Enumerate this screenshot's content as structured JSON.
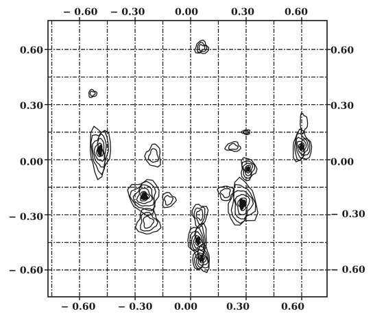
{
  "chart_data": {
    "type": "contour",
    "title": "",
    "xlabel": "",
    "ylabel": "",
    "xlim": [
      -0.9,
      0.9
    ],
    "ylim": [
      -0.78,
      0.78
    ],
    "grid": true,
    "x_ticks": [
      -0.6,
      -0.3,
      0.0,
      0.3,
      0.6
    ],
    "y_ticks": [
      0.6,
      0.3,
      0.0,
      -0.3,
      -0.6
    ],
    "tick_labels": {
      "top": [
        "− 0.60",
        "− 0.30",
        "0.00",
        "0.30",
        "0.60"
      ],
      "bottom": [
        "− 0.60",
        "− 0.30",
        "0.00",
        "0.30",
        "0.60"
      ],
      "left": [
        "0.60",
        "0.30",
        "0.00",
        "− 0.30",
        "− 0.60"
      ],
      "right": [
        "0.60",
        "0.30",
        "0.00",
        "− 0.30",
        "− 0.60"
      ]
    },
    "peaks": [
      {
        "x": 0.06,
        "y": 0.61,
        "rx": 0.035,
        "ry": 0.035,
        "levels": 3
      },
      {
        "x": -0.53,
        "y": 0.36,
        "rx": 0.022,
        "ry": 0.02,
        "levels": 2
      },
      {
        "x": -0.49,
        "y": 0.05,
        "rx": 0.055,
        "ry": 0.13,
        "levels": 5
      },
      {
        "x": -0.25,
        "y": -0.2,
        "rx": 0.08,
        "ry": 0.09,
        "levels": 5
      },
      {
        "x": -0.2,
        "y": 0.02,
        "rx": 0.04,
        "ry": 0.06,
        "levels": 2
      },
      {
        "x": -0.23,
        "y": -0.34,
        "rx": 0.06,
        "ry": 0.07,
        "levels": 3
      },
      {
        "x": -0.12,
        "y": -0.22,
        "rx": 0.035,
        "ry": 0.04,
        "levels": 2
      },
      {
        "x": 0.05,
        "y": -0.3,
        "rx": 0.04,
        "ry": 0.06,
        "levels": 3
      },
      {
        "x": 0.04,
        "y": -0.44,
        "rx": 0.05,
        "ry": 0.09,
        "levels": 5
      },
      {
        "x": 0.06,
        "y": -0.54,
        "rx": 0.045,
        "ry": 0.07,
        "levels": 5
      },
      {
        "x": 0.28,
        "y": -0.24,
        "rx": 0.075,
        "ry": 0.12,
        "levels": 5
      },
      {
        "x": 0.31,
        "y": -0.05,
        "rx": 0.04,
        "ry": 0.06,
        "levels": 4
      },
      {
        "x": 0.19,
        "y": -0.18,
        "rx": 0.04,
        "ry": 0.04,
        "levels": 2
      },
      {
        "x": 0.3,
        "y": 0.15,
        "rx": 0.022,
        "ry": 0.013,
        "levels": 2
      },
      {
        "x": 0.23,
        "y": 0.07,
        "rx": 0.04,
        "ry": 0.025,
        "levels": 2
      },
      {
        "x": 0.6,
        "y": 0.07,
        "rx": 0.05,
        "ry": 0.08,
        "levels": 5
      },
      {
        "x": 0.61,
        "y": 0.2,
        "rx": 0.02,
        "ry": 0.05,
        "levels": 1
      }
    ]
  }
}
